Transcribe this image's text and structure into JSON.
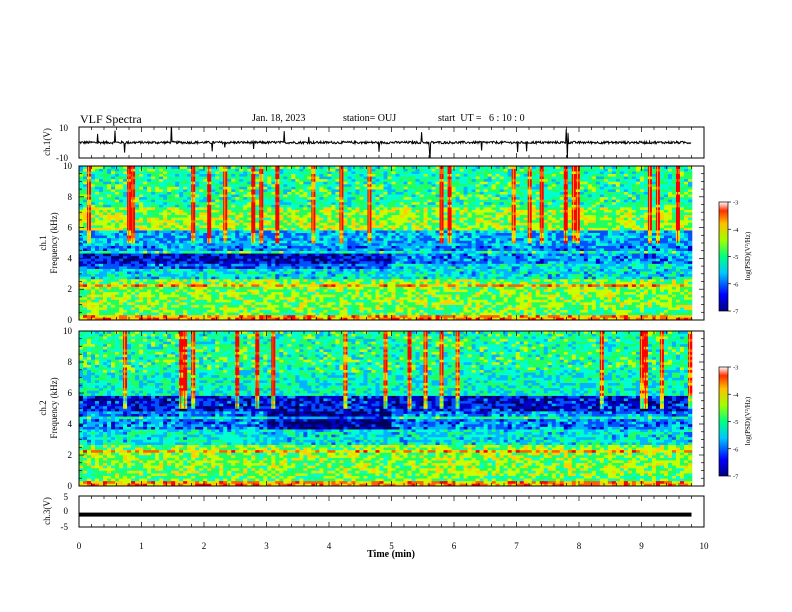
{
  "header": {
    "title": "VLF Spectra",
    "date": "Jan. 18, 2023",
    "station": "station= OUJ",
    "start": "start  UT =   6 : 10 : 0"
  },
  "chart_data": [
    {
      "type": "line",
      "panel": "ch1-waveform",
      "ylabel": "ch.1(V)",
      "ylim": [
        -10,
        10
      ],
      "yticks": [
        "10",
        "-10"
      ],
      "xlim": [
        0,
        10
      ],
      "baseline_value": 0,
      "data_end": 9.8
    },
    {
      "type": "heatmap",
      "panel": "ch1-spectrogram",
      "ylabel_line1": "ch.1",
      "ylabel_line2": "Frequency (kHz)",
      "ylim": [
        0,
        10
      ],
      "yticks": [
        "0",
        "2",
        "4",
        "6",
        "8",
        "10"
      ],
      "xlim": [
        0,
        10
      ],
      "colorbar": {
        "label": "log(PSD)(V²/Hz)",
        "range": [
          -7,
          -3
        ],
        "ticks": [
          "-3",
          "-4",
          "-5",
          "-6",
          "-7"
        ]
      }
    },
    {
      "type": "heatmap",
      "panel": "ch2-spectrogram",
      "ylabel_line1": "ch.2",
      "ylabel_line2": "Frequency (kHz)",
      "ylim": [
        0,
        10
      ],
      "yticks": [
        "0",
        "2",
        "4",
        "6",
        "8",
        "10"
      ],
      "xlim": [
        0,
        10
      ],
      "colorbar": {
        "label": "log(PSD)(V²/Hz)",
        "range": [
          -7,
          -3
        ],
        "ticks": [
          "-3",
          "-4",
          "-5",
          "-6",
          "-7"
        ]
      }
    },
    {
      "type": "line",
      "panel": "ch3-waveform",
      "ylabel": "ch.3(V)",
      "ylim": [
        -5,
        5
      ],
      "yticks": [
        "5",
        "0",
        "-5"
      ],
      "xlim": [
        0,
        10
      ],
      "baseline_value": -1,
      "data_end": 9.8,
      "xlabel": "Time (min)",
      "xticks": [
        "0",
        "1",
        "2",
        "3",
        "4",
        "5",
        "6",
        "7",
        "8",
        "9",
        "10"
      ]
    }
  ],
  "colors": {
    "palette": [
      "#000060",
      "#0000c8",
      "#0050ff",
      "#00b4ff",
      "#00ffd0",
      "#20ff60",
      "#c8ff00",
      "#ffd000",
      "#ff6000",
      "#ff0000"
    ]
  }
}
